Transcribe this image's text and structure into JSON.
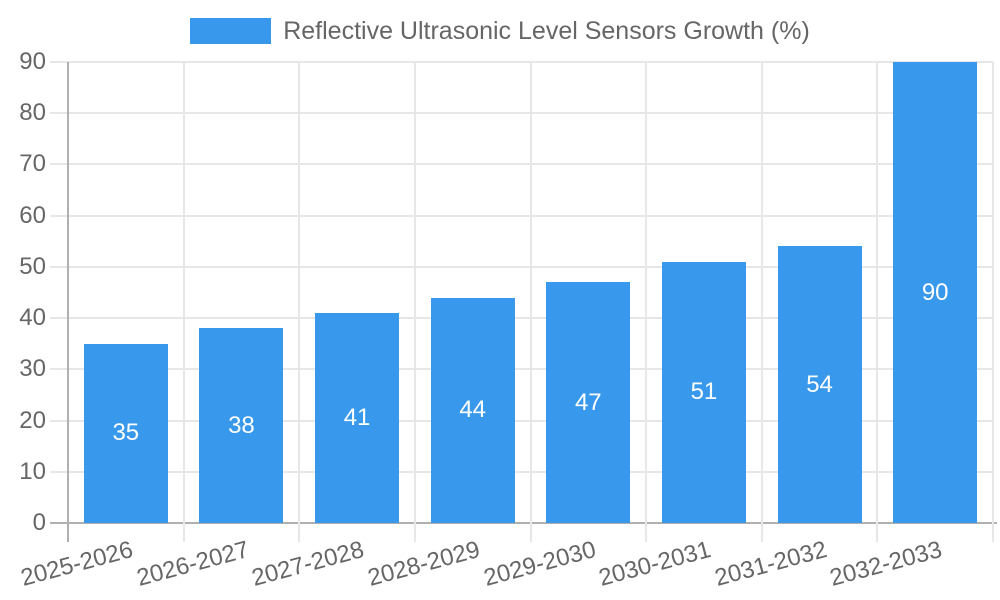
{
  "chart_data": {
    "type": "bar",
    "title": "",
    "legend_position": "top",
    "categories": [
      "2025-2026",
      "2026-2027",
      "2027-2028",
      "2028-2029",
      "2029-2030",
      "2030-2031",
      "2031-2032",
      "2032-2033"
    ],
    "series": [
      {
        "name": "Reflective Ultrasonic Level Sensors Growth (%)",
        "values": [
          35,
          38,
          41,
          44,
          47,
          51,
          54,
          90
        ]
      }
    ],
    "value_labels_shown": true,
    "xlabel": "",
    "ylabel": "",
    "ylim": [
      0,
      90
    ],
    "yticks": [
      0,
      10,
      20,
      30,
      40,
      50,
      60,
      70,
      80,
      90
    ],
    "grid": true,
    "colors": {
      "bar": "#3899ec",
      "grid": "#e7e7e7",
      "axis": "#b0b0b0",
      "text": "#666666",
      "value_label": "#ffffff"
    }
  }
}
